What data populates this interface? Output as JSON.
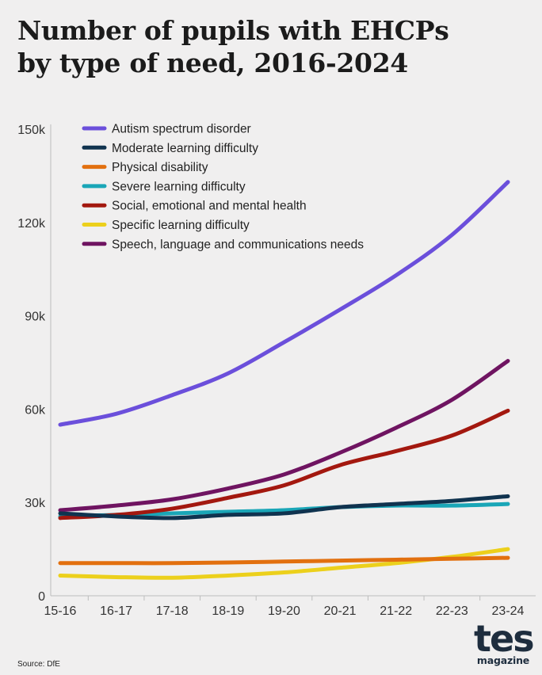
{
  "header": {
    "title_line1": "Number of pupils with EHCPs",
    "title_line2": "by type of need, 2016-2024"
  },
  "footer": {
    "source": "Source: DfE",
    "logo_main": "tes",
    "logo_sub": "magazine"
  },
  "chart_data": {
    "type": "line",
    "title": "Number of pupils with EHCPs by type of need, 2016-2024",
    "xlabel": "",
    "ylabel": "",
    "ylim": [
      0,
      150000
    ],
    "yticks": [
      0,
      30000,
      60000,
      90000,
      120000,
      150000
    ],
    "ytick_labels": [
      "0",
      "30k",
      "60k",
      "90k",
      "120k",
      "150k"
    ],
    "categories": [
      "15-16",
      "16-17",
      "17-18",
      "18-19",
      "19-20",
      "20-21",
      "21-22",
      "22-23",
      "23-24"
    ],
    "legend_position": "top-left",
    "series": [
      {
        "name": "Autism spectrum disorder",
        "color": "#6b4fdb",
        "values": [
          55000,
          58500,
          64500,
          71500,
          81500,
          92000,
          103000,
          116000,
          133000
        ]
      },
      {
        "name": "Moderate learning difficulty",
        "color": "#10334f",
        "values": [
          26500,
          25500,
          25000,
          26000,
          26500,
          28500,
          29500,
          30500,
          32000
        ]
      },
      {
        "name": "Physical disability",
        "color": "#e2700f",
        "values": [
          10500,
          10500,
          10500,
          10700,
          11000,
          11300,
          11600,
          11900,
          12200
        ]
      },
      {
        "name": "Severe learning difficulty",
        "color": "#1aa6b7",
        "values": [
          25500,
          26000,
          26500,
          27000,
          27500,
          28500,
          29000,
          29000,
          29500
        ]
      },
      {
        "name": "Social, emotional and mental health",
        "color": "#a3180f",
        "values": [
          25000,
          26000,
          28000,
          31500,
          35500,
          42000,
          46500,
          51500,
          59500
        ]
      },
      {
        "name": "Specific learning difficulty",
        "color": "#ecd01c",
        "values": [
          6500,
          6000,
          5800,
          6500,
          7500,
          9000,
          10500,
          12500,
          15000
        ]
      },
      {
        "name": "Speech, language and communications needs",
        "color": "#6f1461",
        "values": [
          27500,
          29000,
          31000,
          34500,
          39000,
          46000,
          54000,
          63000,
          75500
        ]
      }
    ]
  }
}
